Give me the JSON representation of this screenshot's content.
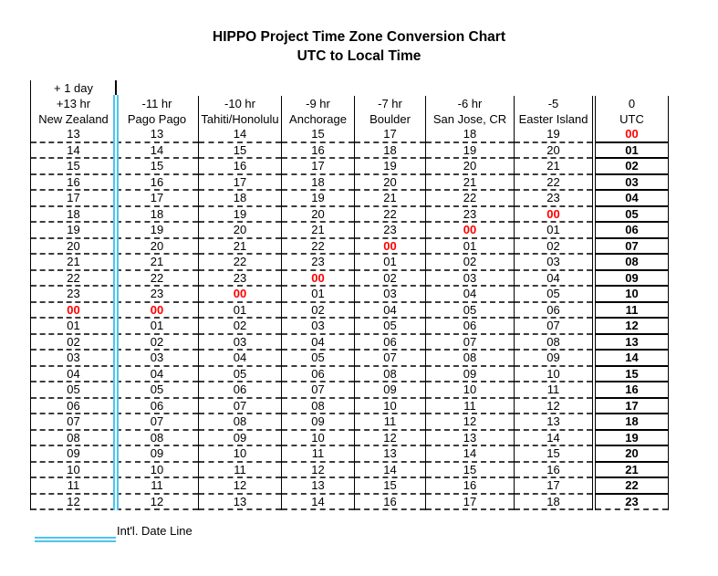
{
  "title": {
    "line1": "HIPPO Project Time Zone Conversion Chart",
    "line2": "UTC to Local Time"
  },
  "chart_data": {
    "type": "table",
    "title": "HIPPO Project Time Zone Conversion Chart",
    "subtitle": "UTC to Local Time",
    "plus_one_day_label": "+ 1 day",
    "midnight_value": "00",
    "columns": [
      {
        "id": "new-zealand",
        "offset": "+13 hr",
        "city": "New Zealand"
      },
      {
        "id": "pago-pago",
        "offset": "-11 hr",
        "city": "Pago Pago"
      },
      {
        "id": "tahiti-honolulu",
        "offset": "-10 hr",
        "city": "Tahiti/Honolulu"
      },
      {
        "id": "anchorage",
        "offset": "-9 hr",
        "city": "Anchorage"
      },
      {
        "id": "boulder",
        "offset": "-7 hr",
        "city": "Boulder"
      },
      {
        "id": "san-jose-cr",
        "offset": "-6 hr",
        "city": "San Jose, CR"
      },
      {
        "id": "easter-island",
        "offset": "-5",
        "city": "Easter Island"
      }
    ],
    "utc_column": {
      "offset": "0",
      "city": "UTC"
    },
    "rows": [
      {
        "local": [
          "13",
          "13",
          "14",
          "15",
          "17",
          "18",
          "19"
        ],
        "utc": "00"
      },
      {
        "local": [
          "14",
          "14",
          "15",
          "16",
          "18",
          "19",
          "20"
        ],
        "utc": "01"
      },
      {
        "local": [
          "15",
          "15",
          "16",
          "17",
          "19",
          "20",
          "21"
        ],
        "utc": "02"
      },
      {
        "local": [
          "16",
          "16",
          "17",
          "18",
          "20",
          "21",
          "22"
        ],
        "utc": "03"
      },
      {
        "local": [
          "17",
          "17",
          "18",
          "19",
          "21",
          "22",
          "23"
        ],
        "utc": "04"
      },
      {
        "local": [
          "18",
          "18",
          "19",
          "20",
          "22",
          "23",
          "00"
        ],
        "utc": "05"
      },
      {
        "local": [
          "19",
          "19",
          "20",
          "21",
          "23",
          "00",
          "01"
        ],
        "utc": "06"
      },
      {
        "local": [
          "20",
          "20",
          "21",
          "22",
          "00",
          "01",
          "02"
        ],
        "utc": "07"
      },
      {
        "local": [
          "21",
          "21",
          "22",
          "23",
          "01",
          "02",
          "03"
        ],
        "utc": "08"
      },
      {
        "local": [
          "22",
          "22",
          "23",
          "00",
          "02",
          "03",
          "04"
        ],
        "utc": "09"
      },
      {
        "local": [
          "23",
          "23",
          "00",
          "01",
          "03",
          "04",
          "05"
        ],
        "utc": "10"
      },
      {
        "local": [
          "00",
          "00",
          "01",
          "02",
          "04",
          "05",
          "06"
        ],
        "utc": "11"
      },
      {
        "local": [
          "01",
          "01",
          "02",
          "03",
          "05",
          "06",
          "07"
        ],
        "utc": "12"
      },
      {
        "local": [
          "02",
          "02",
          "03",
          "04",
          "06",
          "07",
          "08"
        ],
        "utc": "13"
      },
      {
        "local": [
          "03",
          "03",
          "04",
          "05",
          "07",
          "08",
          "09"
        ],
        "utc": "14"
      },
      {
        "local": [
          "04",
          "04",
          "05",
          "06",
          "08",
          "09",
          "10"
        ],
        "utc": "15"
      },
      {
        "local": [
          "05",
          "05",
          "06",
          "07",
          "09",
          "10",
          "11"
        ],
        "utc": "16"
      },
      {
        "local": [
          "06",
          "06",
          "07",
          "08",
          "10",
          "11",
          "12"
        ],
        "utc": "17"
      },
      {
        "local": [
          "07",
          "07",
          "08",
          "09",
          "11",
          "12",
          "13"
        ],
        "utc": "18"
      },
      {
        "local": [
          "08",
          "08",
          "09",
          "10",
          "12",
          "13",
          "14"
        ],
        "utc": "19"
      },
      {
        "local": [
          "09",
          "09",
          "10",
          "11",
          "13",
          "14",
          "15"
        ],
        "utc": "20"
      },
      {
        "local": [
          "10",
          "10",
          "11",
          "12",
          "14",
          "15",
          "16"
        ],
        "utc": "21"
      },
      {
        "local": [
          "11",
          "11",
          "12",
          "13",
          "15",
          "16",
          "17"
        ],
        "utc": "22"
      },
      {
        "local": [
          "12",
          "12",
          "13",
          "14",
          "16",
          "17",
          "18"
        ],
        "utc": "23"
      }
    ]
  },
  "legend": {
    "label": "Int'l. Date Line"
  },
  "colors": {
    "midnight_red": "#ff0000",
    "date_line_blue": "#4ec3ef",
    "dash_color": "#3d3d3d",
    "border_black": "#000000"
  }
}
